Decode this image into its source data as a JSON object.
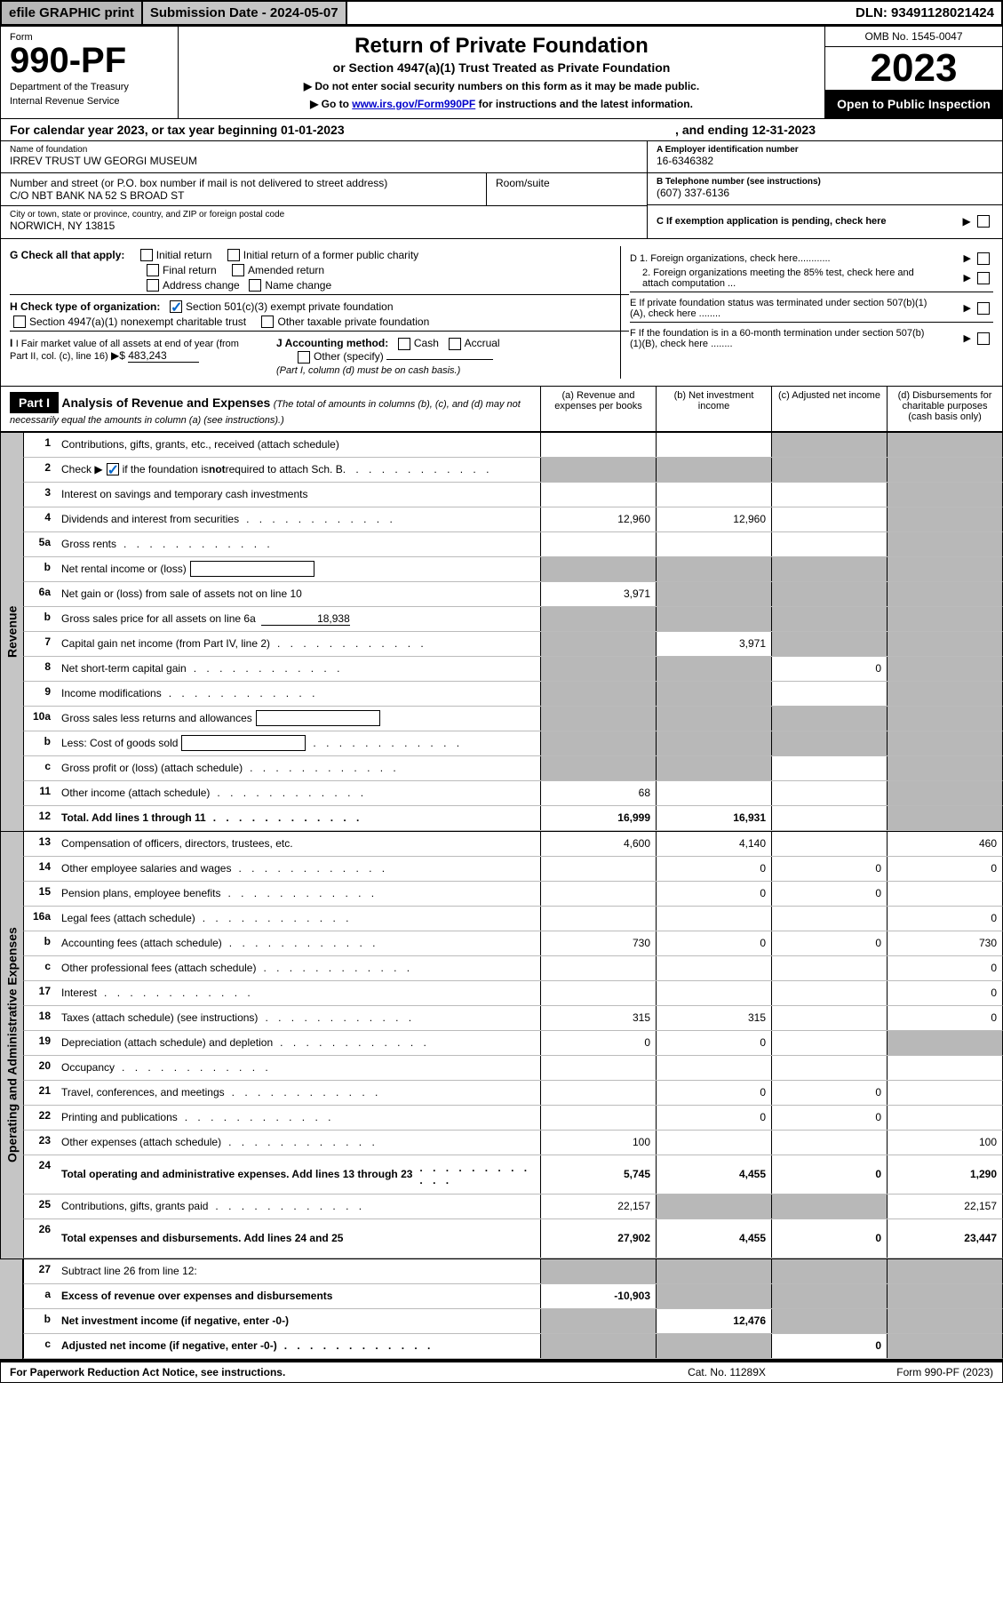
{
  "topbar": {
    "efile": "efile GRAPHIC print",
    "subdate_label": "Submission Date - 2024-05-07",
    "dln": "DLN: 93491128021424"
  },
  "header": {
    "form_label": "Form",
    "form_number": "990-PF",
    "dept1": "Department of the Treasury",
    "dept2": "Internal Revenue Service",
    "title": "Return of Private Foundation",
    "sub": "or Section 4947(a)(1) Trust Treated as Private Foundation",
    "inst1": "▶ Do not enter social security numbers on this form as it may be made public.",
    "inst2_pre": "▶ Go to ",
    "inst2_link": "www.irs.gov/Form990PF",
    "inst2_post": " for instructions and the latest information.",
    "omb": "OMB No. 1545-0047",
    "year": "2023",
    "open": "Open to Public Inspection"
  },
  "calyear": {
    "text": "For calendar year 2023, or tax year beginning 01-01-2023",
    "ending": ", and ending 12-31-2023"
  },
  "info": {
    "name_label": "Name of foundation",
    "name": "IRREV TRUST UW GEORGI MUSEUM",
    "street_label": "Number and street (or P.O. box number if mail is not delivered to street address)",
    "street": "C/O NBT BANK NA 52 S BROAD ST",
    "room_label": "Room/suite",
    "city_label": "City or town, state or province, country, and ZIP or foreign postal code",
    "city": "NORWICH, NY  13815",
    "ein_label": "A Employer identification number",
    "ein": "16-6346382",
    "phone_label": "B Telephone number (see instructions)",
    "phone": "(607) 337-6136",
    "c_label": "C If exemption application is pending, check here"
  },
  "checks": {
    "g_label": "G Check all that apply:",
    "g1": "Initial return",
    "g2": "Initial return of a former public charity",
    "g3": "Final return",
    "g4": "Amended return",
    "g5": "Address change",
    "g6": "Name change",
    "h_label": "H Check type of organization:",
    "h1": "Section 501(c)(3) exempt private foundation",
    "h2": "Section 4947(a)(1) nonexempt charitable trust",
    "h3": "Other taxable private foundation",
    "i_label": "I Fair market value of all assets at end of year (from Part II, col. (c), line 16)",
    "i_value": "483,243",
    "j_label": "J Accounting method:",
    "j1": "Cash",
    "j2": "Accrual",
    "j3": "Other (specify)",
    "j_note": "(Part I, column (d) must be on cash basis.)",
    "d1": "D 1. Foreign organizations, check here............",
    "d2": "2. Foreign organizations meeting the 85% test, check here and attach computation ...",
    "e": "E  If private foundation status was terminated under section 507(b)(1)(A), check here ........",
    "f": "F  If the foundation is in a 60-month termination under section 507(b)(1)(B), check here ........"
  },
  "part1": {
    "label": "Part I",
    "title": "Analysis of Revenue and Expenses",
    "subtitle": "(The total of amounts in columns (b), (c), and (d) may not necessarily equal the amounts in column (a) (see instructions).)",
    "col_a": "(a) Revenue and expenses per books",
    "col_b": "(b) Net investment income",
    "col_c": "(c) Adjusted net income",
    "col_d": "(d) Disbursements for charitable purposes (cash basis only)"
  },
  "sidelabels": {
    "revenue": "Revenue",
    "expenses": "Operating and Administrative Expenses"
  },
  "rows": [
    {
      "n": "1",
      "d": "Contributions, gifts, grants, etc., received (attach schedule)",
      "a": "",
      "b": "",
      "c": "",
      "dd": "",
      "sh_c": true,
      "sh_d": true
    },
    {
      "n": "2",
      "d": "Check ▶ ☑ if the foundation is not required to attach Sch. B",
      "a": "",
      "b": "",
      "c": "",
      "dd": "",
      "sh_a": true,
      "sh_b": true,
      "sh_c": true,
      "sh_d": true,
      "checkrow": true
    },
    {
      "n": "3",
      "d": "Interest on savings and temporary cash investments",
      "a": "",
      "b": "",
      "c": "",
      "dd": "",
      "sh_d": true
    },
    {
      "n": "4",
      "d": "Dividends and interest from securities",
      "a": "12,960",
      "b": "12,960",
      "c": "",
      "dd": "",
      "sh_d": true,
      "dots": true
    },
    {
      "n": "5a",
      "d": "Gross rents",
      "a": "",
      "b": "",
      "c": "",
      "dd": "",
      "sh_d": true,
      "dots": true
    },
    {
      "n": "b",
      "d": "Net rental income or (loss)",
      "a": "",
      "b": "",
      "c": "",
      "dd": "",
      "sh_a": true,
      "sh_b": true,
      "sh_c": true,
      "sh_d": true,
      "minibox": true
    },
    {
      "n": "6a",
      "d": "Net gain or (loss) from sale of assets not on line 10",
      "a": "3,971",
      "b": "",
      "c": "",
      "dd": "",
      "sh_b": true,
      "sh_c": true,
      "sh_d": true
    },
    {
      "n": "b",
      "d": "Gross sales price for all assets on line 6a",
      "a": "",
      "b": "",
      "c": "",
      "dd": "",
      "sh_a": true,
      "sh_b": true,
      "sh_c": true,
      "sh_d": true,
      "inline_val": "18,938"
    },
    {
      "n": "7",
      "d": "Capital gain net income (from Part IV, line 2)",
      "a": "",
      "b": "3,971",
      "c": "",
      "dd": "",
      "sh_a": true,
      "sh_c": true,
      "sh_d": true,
      "dots": true
    },
    {
      "n": "8",
      "d": "Net short-term capital gain",
      "a": "",
      "b": "",
      "c": "0",
      "dd": "",
      "sh_a": true,
      "sh_b": true,
      "sh_d": true,
      "dots": true
    },
    {
      "n": "9",
      "d": "Income modifications",
      "a": "",
      "b": "",
      "c": "",
      "dd": "",
      "sh_a": true,
      "sh_b": true,
      "sh_d": true,
      "dots": true
    },
    {
      "n": "10a",
      "d": "Gross sales less returns and allowances",
      "a": "",
      "b": "",
      "c": "",
      "dd": "",
      "sh_a": true,
      "sh_b": true,
      "sh_c": true,
      "sh_d": true,
      "minibox": true
    },
    {
      "n": "b",
      "d": "Less: Cost of goods sold",
      "a": "",
      "b": "",
      "c": "",
      "dd": "",
      "sh_a": true,
      "sh_b": true,
      "sh_c": true,
      "sh_d": true,
      "minibox": true,
      "dots": true
    },
    {
      "n": "c",
      "d": "Gross profit or (loss) (attach schedule)",
      "a": "",
      "b": "",
      "c": "",
      "dd": "",
      "sh_a": true,
      "sh_b": true,
      "sh_d": true,
      "dots": true
    },
    {
      "n": "11",
      "d": "Other income (attach schedule)",
      "a": "68",
      "b": "",
      "c": "",
      "dd": "",
      "sh_d": true,
      "dots": true
    },
    {
      "n": "12",
      "d": "Total. Add lines 1 through 11",
      "a": "16,999",
      "b": "16,931",
      "c": "",
      "dd": "",
      "sh_d": true,
      "bold": true,
      "dots": true
    }
  ],
  "exprows": [
    {
      "n": "13",
      "d": "Compensation of officers, directors, trustees, etc.",
      "a": "4,600",
      "b": "4,140",
      "c": "",
      "dd": "460"
    },
    {
      "n": "14",
      "d": "Other employee salaries and wages",
      "a": "",
      "b": "0",
      "c": "0",
      "dd": "0",
      "dots": true
    },
    {
      "n": "15",
      "d": "Pension plans, employee benefits",
      "a": "",
      "b": "0",
      "c": "0",
      "dd": "",
      "dots": true
    },
    {
      "n": "16a",
      "d": "Legal fees (attach schedule)",
      "a": "",
      "b": "",
      "c": "",
      "dd": "0",
      "dots": true
    },
    {
      "n": "b",
      "d": "Accounting fees (attach schedule)",
      "a": "730",
      "b": "0",
      "c": "0",
      "dd": "730",
      "dots": true
    },
    {
      "n": "c",
      "d": "Other professional fees (attach schedule)",
      "a": "",
      "b": "",
      "c": "",
      "dd": "0",
      "dots": true
    },
    {
      "n": "17",
      "d": "Interest",
      "a": "",
      "b": "",
      "c": "",
      "dd": "0",
      "dots": true
    },
    {
      "n": "18",
      "d": "Taxes (attach schedule) (see instructions)",
      "a": "315",
      "b": "315",
      "c": "",
      "dd": "0",
      "dots": true
    },
    {
      "n": "19",
      "d": "Depreciation (attach schedule) and depletion",
      "a": "0",
      "b": "0",
      "c": "",
      "dd": "",
      "sh_d": true,
      "dots": true
    },
    {
      "n": "20",
      "d": "Occupancy",
      "a": "",
      "b": "",
      "c": "",
      "dd": "",
      "dots": true
    },
    {
      "n": "21",
      "d": "Travel, conferences, and meetings",
      "a": "",
      "b": "0",
      "c": "0",
      "dd": "",
      "dots": true
    },
    {
      "n": "22",
      "d": "Printing and publications",
      "a": "",
      "b": "0",
      "c": "0",
      "dd": "",
      "dots": true
    },
    {
      "n": "23",
      "d": "Other expenses (attach schedule)",
      "a": "100",
      "b": "",
      "c": "",
      "dd": "100",
      "dots": true
    },
    {
      "n": "24",
      "d": "Total operating and administrative expenses. Add lines 13 through 23",
      "a": "5,745",
      "b": "4,455",
      "c": "0",
      "dd": "1,290",
      "bold": true,
      "dots": true,
      "twoline": true
    },
    {
      "n": "25",
      "d": "Contributions, gifts, grants paid",
      "a": "22,157",
      "b": "",
      "c": "",
      "dd": "22,157",
      "sh_b": true,
      "sh_c": true,
      "dots": true
    },
    {
      "n": "26",
      "d": "Total expenses and disbursements. Add lines 24 and 25",
      "a": "27,902",
      "b": "4,455",
      "c": "0",
      "dd": "23,447",
      "bold": true,
      "twoline": true
    }
  ],
  "subrows": [
    {
      "n": "27",
      "d": "Subtract line 26 from line 12:",
      "a": "",
      "b": "",
      "c": "",
      "dd": "",
      "sh_a": true,
      "sh_b": true,
      "sh_c": true,
      "sh_d": true
    },
    {
      "n": "a",
      "d": "Excess of revenue over expenses and disbursements",
      "a": "-10,903",
      "b": "",
      "c": "",
      "dd": "",
      "sh_b": true,
      "sh_c": true,
      "sh_d": true,
      "bold": true
    },
    {
      "n": "b",
      "d": "Net investment income (if negative, enter -0-)",
      "a": "",
      "b": "12,476",
      "c": "",
      "dd": "",
      "sh_a": true,
      "sh_c": true,
      "sh_d": true,
      "bold": true
    },
    {
      "n": "c",
      "d": "Adjusted net income (if negative, enter -0-)",
      "a": "",
      "b": "",
      "c": "0",
      "dd": "",
      "sh_a": true,
      "sh_b": true,
      "sh_d": true,
      "bold": true,
      "dots": true
    }
  ],
  "footer": {
    "left": "For Paperwork Reduction Act Notice, see instructions.",
    "mid": "Cat. No. 11289X",
    "right": "Form 990-PF (2023)"
  },
  "colors": {
    "shaded": "#b8b8b8",
    "check": "#0066cc"
  }
}
